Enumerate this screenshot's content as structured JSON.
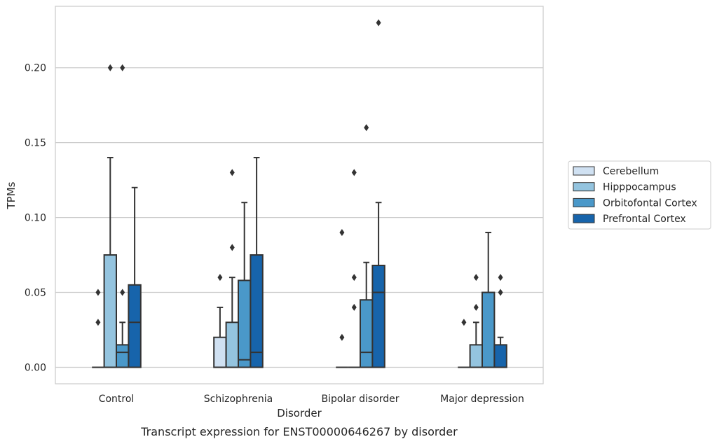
{
  "caption": "Transcript expression for ENST00000646267 by disorder",
  "chart_data": {
    "type": "box",
    "title": "",
    "xlabel": "Disorder",
    "ylabel": "TPMs",
    "ylim": [
      -0.011,
      0.241
    ],
    "yticks": [
      0.0,
      0.05,
      0.1,
      0.15,
      0.2
    ],
    "ytick_labels": [
      "0.00",
      "0.05",
      "0.10",
      "0.15",
      "0.20"
    ],
    "grid": "horizontal",
    "legend_position": "right",
    "categories": [
      "Control",
      "Schizophrenia",
      "Bipolar disorder",
      "Major depression"
    ],
    "series": [
      {
        "name": "Cerebellum",
        "color": "#d0e1f2",
        "boxes": [
          {
            "q1": 0.0,
            "median": 0.0,
            "q3": 0.0,
            "whisker_low": 0.0,
            "whisker_high": 0.0,
            "outliers": [
              0.03,
              0.05
            ]
          },
          {
            "q1": 0.0,
            "median": 0.0,
            "q3": 0.02,
            "whisker_low": 0.0,
            "whisker_high": 0.04,
            "outliers": [
              0.06
            ]
          },
          {
            "q1": 0.0,
            "median": 0.0,
            "q3": 0.0,
            "whisker_low": 0.0,
            "whisker_high": 0.0,
            "outliers": [
              0.02,
              0.09
            ]
          },
          {
            "q1": 0.0,
            "median": 0.0,
            "q3": 0.0,
            "whisker_low": 0.0,
            "whisker_high": 0.0,
            "outliers": [
              0.03
            ]
          }
        ]
      },
      {
        "name": "Hipppocampus",
        "color": "#94c4df",
        "boxes": [
          {
            "q1": 0.0,
            "median": 0.0,
            "q3": 0.075,
            "whisker_low": 0.0,
            "whisker_high": 0.14,
            "outliers": [
              0.2
            ]
          },
          {
            "q1": 0.0,
            "median": 0.0,
            "q3": 0.03,
            "whisker_low": 0.0,
            "whisker_high": 0.06,
            "outliers": [
              0.08,
              0.13
            ]
          },
          {
            "q1": 0.0,
            "median": 0.0,
            "q3": 0.0,
            "whisker_low": 0.0,
            "whisker_high": 0.0,
            "outliers": [
              0.04,
              0.06,
              0.13
            ]
          },
          {
            "q1": 0.0,
            "median": 0.0,
            "q3": 0.015,
            "whisker_low": 0.0,
            "whisker_high": 0.03,
            "outliers": [
              0.04,
              0.06
            ]
          }
        ]
      },
      {
        "name": "Orbitofontal Cortex",
        "color": "#4a98c9",
        "boxes": [
          {
            "q1": 0.0,
            "median": 0.01,
            "q3": 0.015,
            "whisker_low": 0.0,
            "whisker_high": 0.03,
            "outliers": [
              0.05,
              0.2
            ]
          },
          {
            "q1": 0.0,
            "median": 0.005,
            "q3": 0.058,
            "whisker_low": 0.0,
            "whisker_high": 0.11,
            "outliers": []
          },
          {
            "q1": 0.0,
            "median": 0.01,
            "q3": 0.045,
            "whisker_low": 0.0,
            "whisker_high": 0.07,
            "outliers": [
              0.16
            ]
          },
          {
            "q1": 0.0,
            "median": 0.0,
            "q3": 0.05,
            "whisker_low": 0.0,
            "whisker_high": 0.09,
            "outliers": []
          }
        ]
      },
      {
        "name": "Prefrontal Cortex",
        "color": "#1764ab",
        "boxes": [
          {
            "q1": 0.0,
            "median": 0.03,
            "q3": 0.055,
            "whisker_low": 0.0,
            "whisker_high": 0.12,
            "outliers": []
          },
          {
            "q1": 0.0,
            "median": 0.01,
            "q3": 0.075,
            "whisker_low": 0.0,
            "whisker_high": 0.14,
            "outliers": []
          },
          {
            "q1": 0.0,
            "median": 0.05,
            "q3": 0.068,
            "whisker_low": 0.0,
            "whisker_high": 0.11,
            "outliers": [
              0.23
            ]
          },
          {
            "q1": 0.0,
            "median": 0.0,
            "q3": 0.015,
            "whisker_low": 0.0,
            "whisker_high": 0.02,
            "outliers": [
              0.05,
              0.06
            ]
          }
        ]
      }
    ]
  }
}
